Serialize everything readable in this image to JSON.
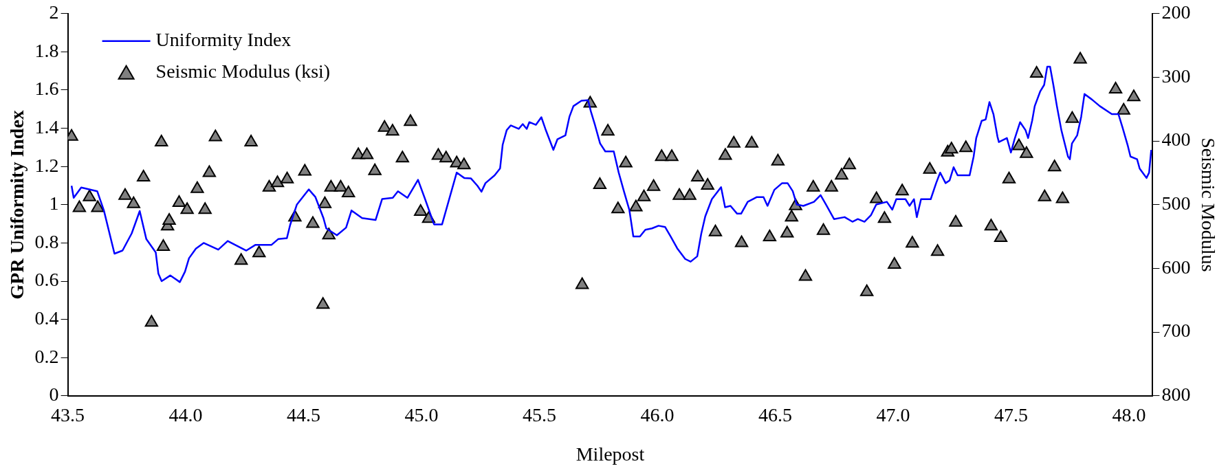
{
  "chart_data": {
    "type": "line",
    "xlabel": "Milepost",
    "ylabel": "GPR Uniformity Index",
    "y2label": "Seismic Modulus",
    "xlim": [
      43.5,
      48.1
    ],
    "xticks": [
      {
        "value": 43.5,
        "label": "43.5"
      },
      {
        "value": 44,
        "label": "44.0"
      },
      {
        "value": 44.5,
        "label": "44.5"
      },
      {
        "value": 45,
        "label": "45.0"
      },
      {
        "value": 45.5,
        "label": "45.5"
      },
      {
        "value": 46,
        "label": "46.0"
      },
      {
        "value": 46.5,
        "label": "46.5"
      },
      {
        "value": 47,
        "label": "47.0"
      },
      {
        "value": 47.5,
        "label": "47.5"
      },
      {
        "value": 48,
        "label": "48.0"
      }
    ],
    "ylim": [
      0,
      2
    ],
    "yticks": [
      0,
      0.2,
      0.4,
      0.6,
      0.8,
      1,
      1.2,
      1.4,
      1.6,
      1.8,
      2
    ],
    "y2lim": [
      800,
      200
    ],
    "y2ticks": [
      200,
      300,
      400,
      500,
      600,
      700,
      800
    ],
    "grid": false,
    "legend": "top left",
    "series": [
      {
        "name": "Uniformity Index",
        "color": "#0000ff",
        "marker": "none",
        "line_style": "solid",
        "x": [
          43.516,
          43.525,
          43.557,
          43.625,
          43.653,
          43.698,
          43.732,
          43.771,
          43.805,
          43.833,
          43.873,
          43.884,
          43.898,
          43.935,
          43.975,
          43.997,
          44.014,
          44.043,
          44.076,
          44.138,
          44.178,
          44.257,
          44.296,
          44.364,
          44.392,
          44.429,
          44.443,
          44.471,
          44.522,
          44.55,
          44.584,
          44.596,
          44.641,
          44.68,
          44.703,
          44.748,
          44.805,
          44.833,
          44.878,
          44.9,
          44.94,
          44.985,
          45.013,
          45.053,
          45.087,
          45.149,
          45.181,
          45.209,
          45.237,
          45.254,
          45.271,
          45.31,
          45.333,
          45.344,
          45.361,
          45.378,
          45.412,
          45.429,
          45.446,
          45.457,
          45.485,
          45.508,
          45.525,
          45.542,
          45.559,
          45.576,
          45.61,
          45.627,
          45.644,
          45.678,
          45.706,
          45.718,
          45.735,
          45.757,
          45.779,
          45.815,
          45.836,
          45.858,
          45.881,
          45.898,
          45.926,
          45.949,
          45.977,
          46.005,
          46.033,
          46.056,
          46.084,
          46.118,
          46.141,
          46.169,
          46.186,
          46.203,
          46.231,
          46.27,
          46.287,
          46.31,
          46.338,
          46.355,
          46.383,
          46.422,
          46.45,
          46.467,
          46.496,
          46.529,
          46.552,
          46.574,
          46.591,
          46.619,
          46.664,
          46.692,
          46.715,
          46.749,
          46.794,
          46.827,
          46.85,
          46.878,
          46.906,
          46.928,
          46.973,
          46.996,
          47.013,
          47.052,
          47.069,
          47.088,
          47.1,
          47.118,
          47.159,
          47.182,
          47.199,
          47.222,
          47.239,
          47.256,
          47.273,
          47.324,
          47.341,
          47.352,
          47.375,
          47.392,
          47.408,
          47.425,
          47.442,
          47.448,
          47.482,
          47.499,
          47.516,
          47.538,
          47.561,
          47.572,
          47.589,
          47.6,
          47.623,
          47.64,
          47.653,
          47.665,
          47.679,
          47.694,
          47.713,
          47.741,
          47.749,
          47.758,
          47.78,
          47.797,
          47.811,
          47.842,
          47.876,
          47.927,
          47.955,
          47.972,
          47.995,
          48.006,
          48.034,
          48.045,
          48.074,
          48.085,
          48.094
        ],
        "values": [
          1.099,
          1.036,
          1.09,
          1.07,
          0.97,
          0.744,
          0.76,
          0.85,
          0.967,
          0.82,
          0.75,
          0.64,
          0.6,
          0.63,
          0.595,
          0.65,
          0.72,
          0.77,
          0.8,
          0.765,
          0.81,
          0.76,
          0.79,
          0.79,
          0.82,
          0.825,
          0.895,
          1.0,
          1.08,
          1.04,
          0.93,
          0.876,
          0.84,
          0.88,
          0.97,
          0.93,
          0.92,
          1.03,
          1.036,
          1.07,
          1.036,
          1.13,
          1.036,
          0.897,
          0.897,
          1.168,
          1.14,
          1.138,
          1.099,
          1.068,
          1.113,
          1.154,
          1.19,
          1.314,
          1.39,
          1.415,
          1.397,
          1.422,
          1.397,
          1.432,
          1.418,
          1.458,
          1.397,
          1.342,
          1.287,
          1.342,
          1.363,
          1.46,
          1.516,
          1.544,
          1.547,
          1.488,
          1.419,
          1.321,
          1.279,
          1.279,
          1.168,
          1.071,
          0.974,
          0.834,
          0.834,
          0.869,
          0.876,
          0.89,
          0.883,
          0.834,
          0.772,
          0.716,
          0.702,
          0.73,
          0.848,
          0.939,
          1.029,
          1.092,
          0.987,
          0.994,
          0.953,
          0.953,
          1.015,
          1.04,
          1.04,
          0.994,
          1.078,
          1.113,
          1.113,
          1.071,
          1.001,
          0.994,
          1.015,
          1.05,
          1.001,
          0.925,
          0.935,
          0.911,
          0.925,
          0.911,
          0.946,
          1.001,
          1.015,
          0.974,
          1.029,
          1.029,
          0.994,
          1.029,
          0.935,
          1.029,
          1.029,
          1.113,
          1.168,
          1.113,
          1.127,
          1.196,
          1.154,
          1.154,
          1.252,
          1.349,
          1.439,
          1.446,
          1.537,
          1.474,
          1.356,
          1.328,
          1.349,
          1.273,
          1.349,
          1.432,
          1.39,
          1.349,
          1.439,
          1.516,
          1.592,
          1.627,
          1.722,
          1.722,
          1.627,
          1.516,
          1.39,
          1.252,
          1.238,
          1.321,
          1.363,
          1.46,
          1.579,
          1.551,
          1.516,
          1.474,
          1.474,
          1.405,
          1.307,
          1.252,
          1.238,
          1.189,
          1.14,
          1.168,
          1.287
        ]
      },
      {
        "name": "Seismic Modulus (ksi)",
        "type": "scatter",
        "color": "#808080",
        "marker": "triangle",
        "axis": "y2",
        "x": [
          43.516,
          43.549,
          43.592,
          43.627,
          43.743,
          43.779,
          43.821,
          43.855,
          43.897,
          43.905,
          43.923,
          43.93,
          43.972,
          44.006,
          44.049,
          44.082,
          44.1,
          44.126,
          44.235,
          44.277,
          44.311,
          44.354,
          44.389,
          44.43,
          44.463,
          44.505,
          44.539,
          44.582,
          44.59,
          44.607,
          44.616,
          44.657,
          44.69,
          44.732,
          44.768,
          44.802,
          44.843,
          44.877,
          44.919,
          44.953,
          44.996,
          45.03,
          45.071,
          45.104,
          45.149,
          45.18,
          45.681,
          45.715,
          45.756,
          45.79,
          45.833,
          45.866,
          45.909,
          45.943,
          45.984,
          46.018,
          46.061,
          46.093,
          46.137,
          46.171,
          46.213,
          46.246,
          46.288,
          46.324,
          46.357,
          46.4,
          46.476,
          46.511,
          46.55,
          46.569,
          46.586,
          46.628,
          46.661,
          46.704,
          46.738,
          46.781,
          46.814,
          46.888,
          46.929,
          46.963,
          47.005,
          47.038,
          47.081,
          47.155,
          47.188,
          47.231,
          47.247,
          47.265,
          47.308,
          47.415,
          47.456,
          47.491,
          47.533,
          47.565,
          47.608,
          47.642,
          47.684,
          47.718,
          47.759,
          47.793,
          47.943,
          47.977,
          48.02
        ],
        "values": [
          393,
          505,
          488,
          505,
          486,
          499,
          457,
          685,
          402,
          566,
          534,
          525,
          497,
          508,
          475,
          508,
          450,
          394,
          588,
          402,
          576,
          473,
          466,
          460,
          520,
          448,
          530,
          657,
          499,
          548,
          473,
          473,
          482,
          422,
          422,
          447,
          379,
          385,
          427,
          370,
          511,
          522,
          423,
          427,
          435,
          438,
          626,
          341,
          469,
          385,
          507,
          435,
          504,
          488,
          472,
          425,
          425,
          486,
          486,
          457,
          470,
          543,
          423,
          404,
          560,
          404,
          551,
          432,
          545,
          520,
          502,
          613,
          473,
          541,
          473,
          454,
          438,
          637,
          491,
          522,
          594,
          479,
          561,
          445,
          574,
          418,
          413,
          528,
          411,
          534,
          552,
          460,
          408,
          420,
          294,
          488,
          441,
          491,
          365,
          272,
          319,
          352,
          331
        ]
      }
    ]
  }
}
